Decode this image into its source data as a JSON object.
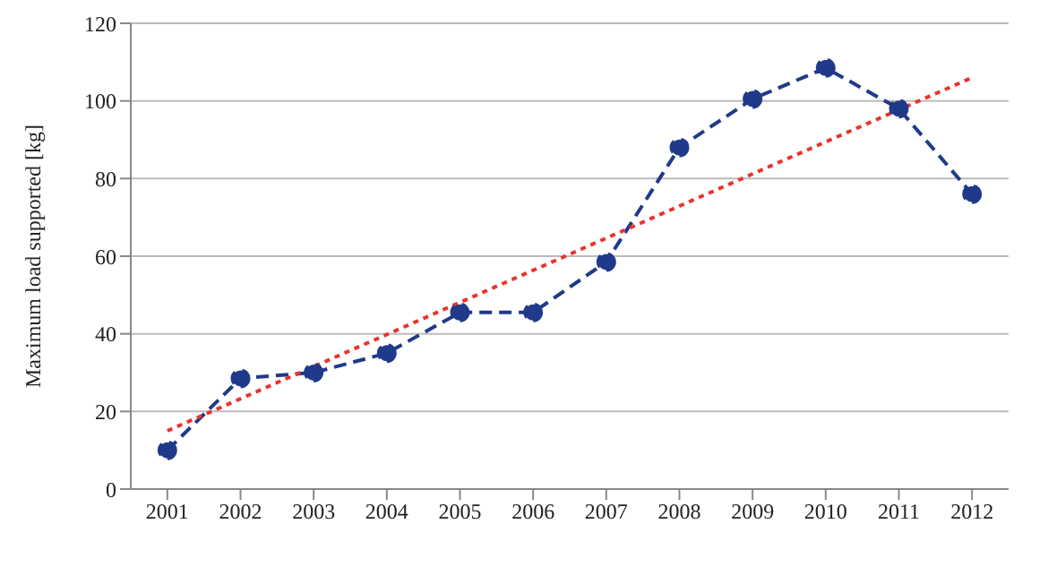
{
  "chart_data": {
    "type": "line",
    "ylabel": "Maximum load supported  [kg]",
    "x": [
      2001,
      2002,
      2003,
      2004,
      2005,
      2006,
      2007,
      2008,
      2009,
      2010,
      2011,
      2012
    ],
    "xlim": [
      2000.5,
      2012.5
    ],
    "xticks": [
      2001,
      2002,
      2003,
      2004,
      2005,
      2006,
      2007,
      2008,
      2009,
      2010,
      2011,
      2012
    ],
    "ylim": [
      0,
      120
    ],
    "yticks": [
      0,
      20,
      40,
      60,
      80,
      100,
      120
    ],
    "grid": "y",
    "series": [
      {
        "color": "#1f3a8a",
        "marker": "circle",
        "line_style": "dashed",
        "values": [
          10,
          28.5,
          30,
          35,
          45.5,
          45.5,
          58.5,
          88,
          100.5,
          108.5,
          98,
          76
        ]
      },
      {
        "color": "#e8342c",
        "marker": "none",
        "line_style": "dotted",
        "x": [
          2001,
          2012
        ],
        "values": [
          15,
          106
        ]
      }
    ]
  }
}
